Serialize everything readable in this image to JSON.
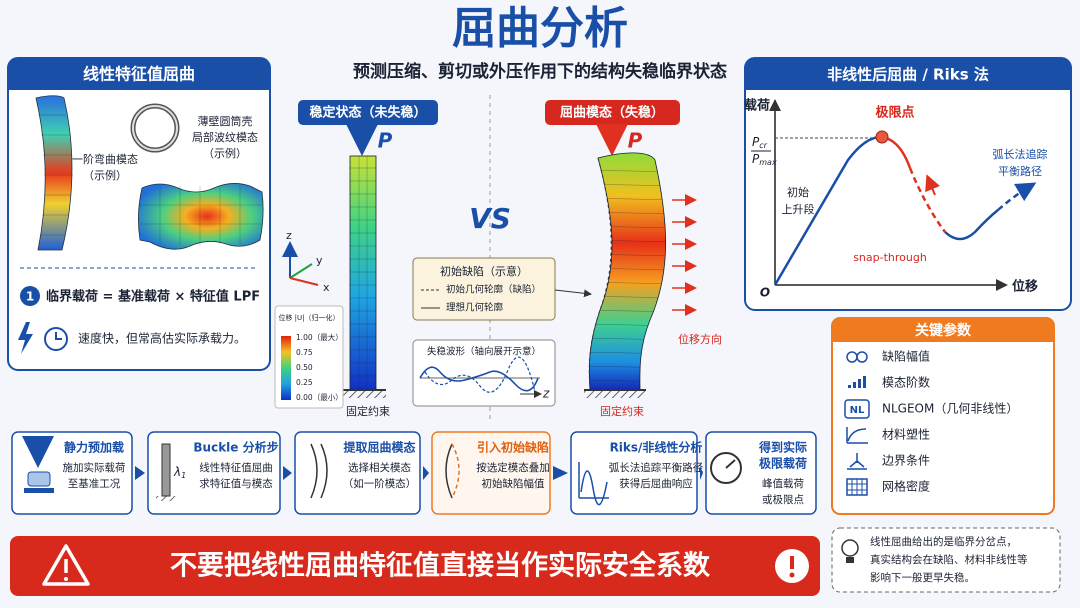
{
  "header": {
    "title": "屈曲分析",
    "subtitle": "预测压缩、剪切或外压作用下的结构失稳临界状态"
  },
  "linear_panel": {
    "title": "线性特征值屈曲",
    "bending_mode": [
      "一阶弯曲模态",
      "（示例）"
    ],
    "shell_mode": [
      "薄壁圆筒壳",
      "局部波纹模态",
      "（示例）"
    ],
    "formula_badge": "1",
    "formula": "临界载荷 = 基准载荷 × 特征值 LPF",
    "note": "速度快，但常高估实际承载力。"
  },
  "comparison": {
    "stable": {
      "label": "稳定状态（未失稳）",
      "load": "P",
      "axes": [
        "z",
        "y",
        "x"
      ],
      "support": "固定约束"
    },
    "legend": {
      "title": "位移 |U|（归一化）",
      "levels": [
        "1.00（最大）",
        "0.75",
        "0.50",
        "0.25",
        "0.00（最小）"
      ]
    },
    "vs": "VS",
    "buckled": {
      "label": "屈曲模态（失稳）",
      "load": "P",
      "displacement": "位移方向",
      "support": "固定约束"
    },
    "imperfection": {
      "title": "初始缺陷（示意）",
      "dashed": "初始几何轮廓（缺陷）",
      "solid": "理想几何轮廓"
    },
    "waveform": {
      "title": "失稳波形（轴向展开示意）",
      "axis": "z"
    }
  },
  "nonlinear_panel": {
    "title": "非线性后屈曲 / Riks 法",
    "y_axis": "载荷",
    "x_axis": "位移",
    "origin": "O",
    "p_cr": {
      "base": "P",
      "sub": "cr"
    },
    "p_max": {
      "base": "P",
      "sub": "max"
    },
    "limit_point": "极限点",
    "rising": [
      "初始",
      "上升段"
    ],
    "arc_length": [
      "弧长法追踪",
      "平衡路径"
    ],
    "snap": "snap-through"
  },
  "key_params": {
    "title": "关键参数",
    "nl_icon": "NL",
    "items": [
      "缺陷幅值",
      "模态阶数",
      "NLGEOM（几何非线性）",
      "材料塑性",
      "边界条件",
      "网格密度"
    ]
  },
  "workflow": {
    "steps": [
      {
        "title": [
          "静力预加载"
        ],
        "lines": [
          "施加实际载荷",
          "至基准工况"
        ]
      },
      {
        "title": [
          "Buckle 分析步"
        ],
        "lines": [
          "线性特征值屈曲",
          "求特征值与模态"
        ],
        "symbol": {
          "base": "λ",
          "sub": "1"
        }
      },
      {
        "title": [
          "提取屈曲模态"
        ],
        "lines": [
          "选择相关模态",
          "（如一阶模态）"
        ]
      },
      {
        "title": [
          "引入初始缺陷"
        ],
        "lines": [
          "按选定模态叠加",
          "初始缺陷幅值"
        ]
      },
      {
        "title": [
          "Riks/非线性分析"
        ],
        "lines": [
          "弧长法追踪平衡路径",
          "获得后屈曲响应"
        ]
      },
      {
        "title": [
          "得到实际",
          "极限载荷"
        ],
        "lines": [
          "峰值载荷",
          "或极限点"
        ]
      }
    ]
  },
  "warning": {
    "text": "不要把线性屈曲特征值直接当作实际安全系数",
    "note": [
      "线性屈曲给出的是临界分岔点，",
      "真实结构会在缺陷、材料非线性等",
      "影响下一般更早失稳。"
    ]
  }
}
